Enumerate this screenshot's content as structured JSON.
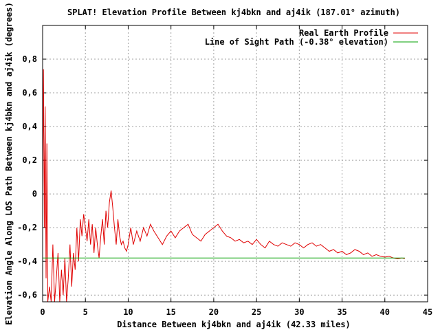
{
  "chart_data": {
    "type": "line",
    "title": "SPLAT! Elevation Profile Between kj4bkn and aj4ik (187.01° azimuth)",
    "xlabel": "Distance Between kj4bkn and aj4ik (42.33 miles)",
    "ylabel": "Elevation Angle Along LOS Path Between kj4bkn and aj4ik (degrees)",
    "xlim": [
      0,
      45
    ],
    "ylim": [
      -0.64,
      1.0
    ],
    "x_ticks": [
      0,
      5,
      10,
      15,
      20,
      25,
      30,
      35,
      40,
      45
    ],
    "y_ticks": [
      -0.6,
      -0.4,
      -0.2,
      0,
      0.2,
      0.4,
      0.6,
      0.8
    ],
    "x_tick_labels": [
      "0",
      "5",
      "10",
      "15",
      "20",
      "25",
      "30",
      "35",
      "40",
      "45"
    ],
    "y_tick_labels": [
      "-0,6",
      "-0,4",
      "-0,2",
      "0",
      "0,2",
      "0,4",
      "0,6",
      "0,8"
    ],
    "grid": true,
    "legend_position": "top-right",
    "series": [
      {
        "name": "Real Earth Profile",
        "color": "#e00000",
        "x": [
          0.0,
          0.1,
          0.2,
          0.3,
          0.4,
          0.5,
          0.6,
          0.8,
          1.0,
          1.2,
          1.4,
          1.6,
          1.8,
          2.0,
          2.2,
          2.4,
          2.6,
          2.8,
          3.0,
          3.2,
          3.4,
          3.6,
          3.8,
          4.0,
          4.2,
          4.4,
          4.6,
          4.8,
          5.0,
          5.2,
          5.4,
          5.6,
          5.8,
          6.0,
          6.2,
          6.4,
          6.6,
          6.8,
          7.0,
          7.2,
          7.4,
          7.6,
          7.8,
          8.0,
          8.2,
          8.4,
          8.6,
          8.8,
          9.0,
          9.2,
          9.4,
          9.6,
          9.8,
          10.0,
          10.3,
          10.6,
          11.0,
          11.4,
          11.8,
          12.2,
          12.6,
          13.0,
          13.5,
          14.0,
          14.5,
          15.0,
          15.5,
          16.0,
          16.5,
          17.0,
          17.5,
          18.0,
          18.5,
          19.0,
          19.5,
          20.0,
          20.5,
          21.0,
          21.5,
          22.0,
          22.5,
          23.0,
          23.5,
          24.0,
          24.5,
          25.0,
          25.5,
          26.0,
          26.5,
          27.0,
          27.5,
          28.0,
          28.5,
          29.0,
          29.5,
          30.0,
          30.5,
          31.0,
          31.5,
          32.0,
          32.5,
          33.0,
          33.5,
          34.0,
          34.5,
          35.0,
          35.5,
          36.0,
          36.5,
          37.0,
          37.5,
          38.0,
          38.5,
          39.0,
          39.5,
          40.0,
          40.5,
          41.0,
          41.5,
          42.0,
          42.33
        ],
        "y": [
          0.0,
          0.74,
          -0.2,
          0.52,
          -0.5,
          0.3,
          -0.64,
          -0.55,
          -0.64,
          -0.3,
          -0.64,
          -0.5,
          -0.35,
          -0.64,
          -0.45,
          -0.6,
          -0.38,
          -0.64,
          -0.5,
          -0.3,
          -0.55,
          -0.35,
          -0.45,
          -0.2,
          -0.4,
          -0.15,
          -0.25,
          -0.12,
          -0.2,
          -0.28,
          -0.15,
          -0.3,
          -0.18,
          -0.35,
          -0.2,
          -0.3,
          -0.38,
          -0.25,
          -0.15,
          -0.3,
          -0.1,
          -0.2,
          -0.05,
          0.02,
          -0.08,
          -0.2,
          -0.3,
          -0.15,
          -0.25,
          -0.3,
          -0.28,
          -0.32,
          -0.34,
          -0.3,
          -0.2,
          -0.3,
          -0.22,
          -0.28,
          -0.2,
          -0.25,
          -0.18,
          -0.22,
          -0.26,
          -0.3,
          -0.25,
          -0.22,
          -0.26,
          -0.22,
          -0.2,
          -0.18,
          -0.24,
          -0.26,
          -0.28,
          -0.24,
          -0.22,
          -0.2,
          -0.18,
          -0.22,
          -0.25,
          -0.26,
          -0.28,
          -0.27,
          -0.29,
          -0.28,
          -0.3,
          -0.27,
          -0.3,
          -0.32,
          -0.28,
          -0.3,
          -0.31,
          -0.29,
          -0.3,
          -0.31,
          -0.29,
          -0.3,
          -0.32,
          -0.3,
          -0.29,
          -0.31,
          -0.3,
          -0.32,
          -0.34,
          -0.33,
          -0.35,
          -0.34,
          -0.36,
          -0.35,
          -0.33,
          -0.34,
          -0.36,
          -0.35,
          -0.37,
          -0.36,
          -0.37,
          -0.375,
          -0.37,
          -0.38,
          -0.385,
          -0.38,
          -0.384
        ]
      },
      {
        "name": "Line of Sight Path (-0.38° elevation)",
        "color": "#00a000",
        "x": [
          0.0,
          42.33
        ],
        "y": [
          -0.38,
          -0.38
        ]
      }
    ]
  }
}
